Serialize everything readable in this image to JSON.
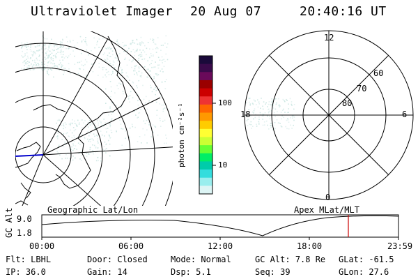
{
  "header": {
    "instrument": "Ultraviolet Imager",
    "date": "20 Aug 07",
    "time": "20:40:16 UT"
  },
  "colorbar": {
    "label": "photon cm⁻²s⁻¹",
    "ticks": [
      "100",
      "10"
    ],
    "colors": [
      "#1a0a3a",
      "#3a0a4a",
      "#6a0a5a",
      "#9a0000",
      "#cc0000",
      "#ee3333",
      "#ff6600",
      "#ff9900",
      "#ffcc00",
      "#ffff33",
      "#ccff33",
      "#66ff33",
      "#00ee66",
      "#00ccaa",
      "#33dddd",
      "#99eeee",
      "#ddf5f5"
    ]
  },
  "polar_plot": {
    "lat_labels": [
      "60",
      "70",
      "80"
    ],
    "mlt_labels": [
      "12",
      "18",
      "6",
      "0"
    ]
  },
  "maps": {
    "left_title": "Geographic Lat/Lon",
    "right_title": "Apex MLat/MLT"
  },
  "altitude_plot": {
    "ylabel": "GC Alt",
    "yticks": [
      "9.0",
      "1.8"
    ],
    "xticks": [
      "00:00",
      "06:00",
      "12:00",
      "18:00",
      "23:59"
    ],
    "marker_color": "#cc0000"
  },
  "status": {
    "row1": [
      {
        "key": "Flt:",
        "value": "LBHL"
      },
      {
        "key": "Door:",
        "value": "Closed"
      },
      {
        "key": "Mode:",
        "value": "Normal"
      },
      {
        "key": "GC Alt:",
        "value": "7.8 Re"
      },
      {
        "key": "GLat:",
        "value": "-61.5"
      }
    ],
    "row2": [
      {
        "key": "IP:",
        "value": "36.0"
      },
      {
        "key": "Gain:",
        "value": "14"
      },
      {
        "key": "Dsp:",
        "value": "5.1"
      },
      {
        "key": "Seq:",
        "value": "39"
      },
      {
        "key": "GLon:",
        "value": "27.6"
      }
    ]
  }
}
